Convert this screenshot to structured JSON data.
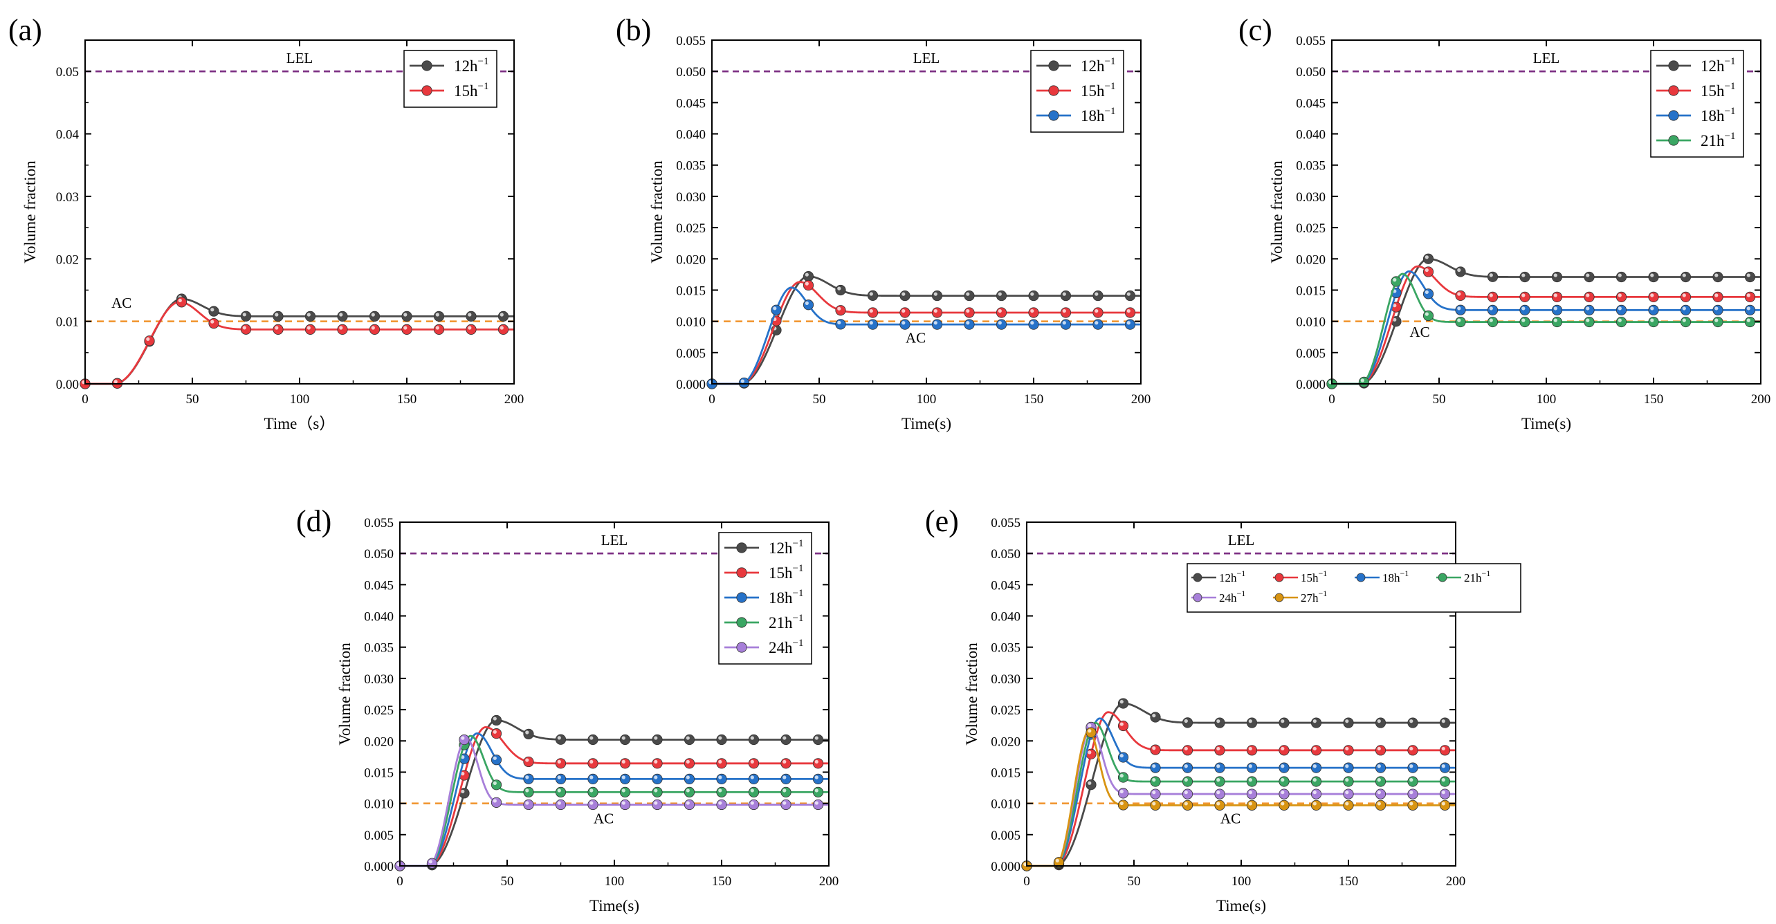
{
  "figure": {
    "panels": [
      "a",
      "b",
      "c",
      "d",
      "e"
    ]
  },
  "chart_data": [
    {
      "panel_label": "(a)",
      "type": "line",
      "xlabel": "Time（s）",
      "ylabel": "Volume fraction",
      "xlim": [
        0,
        200
      ],
      "ylim": [
        0,
        0.055
      ],
      "xticks": [
        0,
        50,
        100,
        150,
        200
      ],
      "xtick_labels": [
        "0",
        "50",
        "100",
        "150",
        "200"
      ],
      "yticks": [
        0,
        0.01,
        0.02,
        0.03,
        0.04,
        0.05
      ],
      "ytick_labels": [
        "0.00",
        "0.01",
        "0.02",
        "0.03",
        "0.04",
        "0.05"
      ],
      "lel": {
        "label": "LEL",
        "value": 0.05,
        "color": "#7b2d82"
      },
      "ac": {
        "label": "AC",
        "value": 0.01,
        "color": "#f0922a",
        "label_x": 17,
        "label_y": 0.0122
      },
      "legend": {
        "placement": "upper-right",
        "columns": 1,
        "size": "large"
      },
      "series": [
        {
          "name": "12h",
          "superscript": "−1",
          "color": "#4a4a4a",
          "peak_t": 45,
          "peak": 0.0136,
          "steady": 0.0108
        },
        {
          "name": "15h",
          "superscript": "−1",
          "color": "#e8383d",
          "peak_t": 44,
          "peak": 0.0131,
          "steady": 0.0087
        }
      ]
    },
    {
      "panel_label": "(b)",
      "type": "line",
      "xlabel": "Time(s)",
      "ylabel": "Volume fraction",
      "xlim": [
        0,
        200
      ],
      "ylim": [
        0,
        0.055
      ],
      "xticks": [
        0,
        50,
        100,
        150,
        200
      ],
      "xtick_labels": [
        "0",
        "50",
        "100",
        "150",
        "200"
      ],
      "yticks": [
        0,
        0.005,
        0.01,
        0.015,
        0.02,
        0.025,
        0.03,
        0.035,
        0.04,
        0.045,
        0.05,
        0.055
      ],
      "ytick_labels": [
        "0.000",
        "0.005",
        "0.010",
        "0.015",
        "0.020",
        "0.025",
        "0.030",
        "0.035",
        "0.040",
        "0.045",
        "0.050",
        "0.055"
      ],
      "lel": {
        "label": "LEL",
        "value": 0.05,
        "color": "#7b2d82"
      },
      "ac": {
        "label": "AC",
        "value": 0.01,
        "color": "#f0922a",
        "label_x": 95,
        "label_y": 0.0066
      },
      "legend": {
        "placement": "upper-right",
        "columns": 1,
        "size": "large"
      },
      "series": [
        {
          "name": "12h",
          "superscript": "−1",
          "color": "#4a4a4a",
          "peak_t": 45,
          "peak": 0.0172,
          "steady": 0.0141
        },
        {
          "name": "15h",
          "superscript": "−1",
          "color": "#e8383d",
          "peak_t": 41,
          "peak": 0.0163,
          "steady": 0.0114
        },
        {
          "name": "18h",
          "superscript": "−1",
          "color": "#2672c9",
          "peak_t": 37,
          "peak": 0.0154,
          "steady": 0.0095
        }
      ]
    },
    {
      "panel_label": "(c)",
      "type": "line",
      "xlabel": "Time(s)",
      "ylabel": "Volume fraction",
      "xlim": [
        0,
        200
      ],
      "ylim": [
        0,
        0.055
      ],
      "xticks": [
        0,
        50,
        100,
        150,
        200
      ],
      "xtick_labels": [
        "0",
        "50",
        "100",
        "150",
        "200"
      ],
      "yticks": [
        0,
        0.005,
        0.01,
        0.015,
        0.02,
        0.025,
        0.03,
        0.035,
        0.04,
        0.045,
        0.05,
        0.055
      ],
      "ytick_labels": [
        "0.000",
        "0.005",
        "0.010",
        "0.015",
        "0.020",
        "0.025",
        "0.030",
        "0.035",
        "0.040",
        "0.045",
        "0.050",
        "0.055"
      ],
      "lel": {
        "label": "LEL",
        "value": 0.05,
        "color": "#7b2d82"
      },
      "ac": {
        "label": "AC",
        "value": 0.01,
        "color": "#f0922a",
        "label_x": 41,
        "label_y": 0.0075
      },
      "legend": {
        "placement": "upper-right",
        "columns": 1,
        "size": "large"
      },
      "series": [
        {
          "name": "12h",
          "superscript": "−1",
          "color": "#4a4a4a",
          "peak_t": 45,
          "peak": 0.02,
          "steady": 0.0171
        },
        {
          "name": "15h",
          "superscript": "−1",
          "color": "#e8383d",
          "peak_t": 40,
          "peak": 0.0188,
          "steady": 0.0139
        },
        {
          "name": "18h",
          "superscript": "−1",
          "color": "#2672c9",
          "peak_t": 36,
          "peak": 0.018,
          "steady": 0.0118
        },
        {
          "name": "21h",
          "superscript": "−1",
          "color": "#3aa663",
          "peak_t": 33,
          "peak": 0.0176,
          "steady": 0.0099
        }
      ]
    },
    {
      "panel_label": "(d)",
      "type": "line",
      "xlabel": "Time(s)",
      "ylabel": "Volume fraction",
      "xlim": [
        0,
        200
      ],
      "ylim": [
        0,
        0.055
      ],
      "xticks": [
        0,
        50,
        100,
        150,
        200
      ],
      "xtick_labels": [
        "0",
        "50",
        "100",
        "150",
        "200"
      ],
      "yticks": [
        0,
        0.005,
        0.01,
        0.015,
        0.02,
        0.025,
        0.03,
        0.035,
        0.04,
        0.045,
        0.05,
        0.055
      ],
      "ytick_labels": [
        "0.000",
        "0.005",
        "0.010",
        "0.015",
        "0.020",
        "0.025",
        "0.030",
        "0.035",
        "0.040",
        "0.045",
        "0.050",
        "0.055"
      ],
      "lel": {
        "label": "LEL",
        "value": 0.05,
        "color": "#7b2d82"
      },
      "ac": {
        "label": "AC",
        "value": 0.01,
        "color": "#f0922a",
        "label_x": 95,
        "label_y": 0.0068
      },
      "legend": {
        "placement": "upper-right",
        "columns": 1,
        "size": "large"
      },
      "series": [
        {
          "name": "12h",
          "superscript": "−1",
          "color": "#4a4a4a",
          "peak_t": 45,
          "peak": 0.0233,
          "steady": 0.0202
        },
        {
          "name": "15h",
          "superscript": "−1",
          "color": "#e8383d",
          "peak_t": 40,
          "peak": 0.0222,
          "steady": 0.0164
        },
        {
          "name": "18h",
          "superscript": "−1",
          "color": "#2672c9",
          "peak_t": 36,
          "peak": 0.0212,
          "steady": 0.0139
        },
        {
          "name": "21h",
          "superscript": "−1",
          "color": "#3aa663",
          "peak_t": 33,
          "peak": 0.0208,
          "steady": 0.0118
        },
        {
          "name": "24h",
          "superscript": "−1",
          "color": "#a77fd9",
          "peak_t": 31,
          "peak": 0.0204,
          "steady": 0.0098
        }
      ]
    },
    {
      "panel_label": "(e)",
      "type": "line",
      "xlabel": "Time(s)",
      "ylabel": "Volume fraction",
      "xlim": [
        0,
        200
      ],
      "ylim": [
        0,
        0.055
      ],
      "xticks": [
        0,
        50,
        100,
        150,
        200
      ],
      "xtick_labels": [
        "0",
        "50",
        "100",
        "150",
        "200"
      ],
      "yticks": [
        0,
        0.005,
        0.01,
        0.015,
        0.02,
        0.025,
        0.03,
        0.035,
        0.04,
        0.045,
        0.05,
        0.055
      ],
      "ytick_labels": [
        "0.000",
        "0.005",
        "0.010",
        "0.015",
        "0.020",
        "0.025",
        "0.030",
        "0.035",
        "0.040",
        "0.045",
        "0.050",
        "0.055"
      ],
      "lel": {
        "label": "LEL",
        "value": 0.05,
        "color": "#7b2d82"
      },
      "ac": {
        "label": "AC",
        "value": 0.01,
        "color": "#f0922a",
        "label_x": 95,
        "label_y": 0.0068
      },
      "legend": {
        "placement": "top",
        "columns": 4,
        "size": "small"
      },
      "series": [
        {
          "name": "12h",
          "superscript": "−1",
          "color": "#4a4a4a",
          "peak_t": 45,
          "peak": 0.026,
          "steady": 0.0229
        },
        {
          "name": "15h",
          "superscript": "−1",
          "color": "#e8383d",
          "peak_t": 38,
          "peak": 0.0246,
          "steady": 0.0185
        },
        {
          "name": "18h",
          "superscript": "−1",
          "color": "#2672c9",
          "peak_t": 34,
          "peak": 0.0236,
          "steady": 0.0157
        },
        {
          "name": "21h",
          "superscript": "−1",
          "color": "#3aa663",
          "peak_t": 32,
          "peak": 0.0229,
          "steady": 0.0135
        },
        {
          "name": "24h",
          "superscript": "−1",
          "color": "#a77fd9",
          "peak_t": 30,
          "peak": 0.0222,
          "steady": 0.0115
        },
        {
          "name": "27h",
          "superscript": "−1",
          "color": "#d89412",
          "peak_t": 29,
          "peak": 0.0216,
          "steady": 0.0097
        }
      ]
    }
  ]
}
